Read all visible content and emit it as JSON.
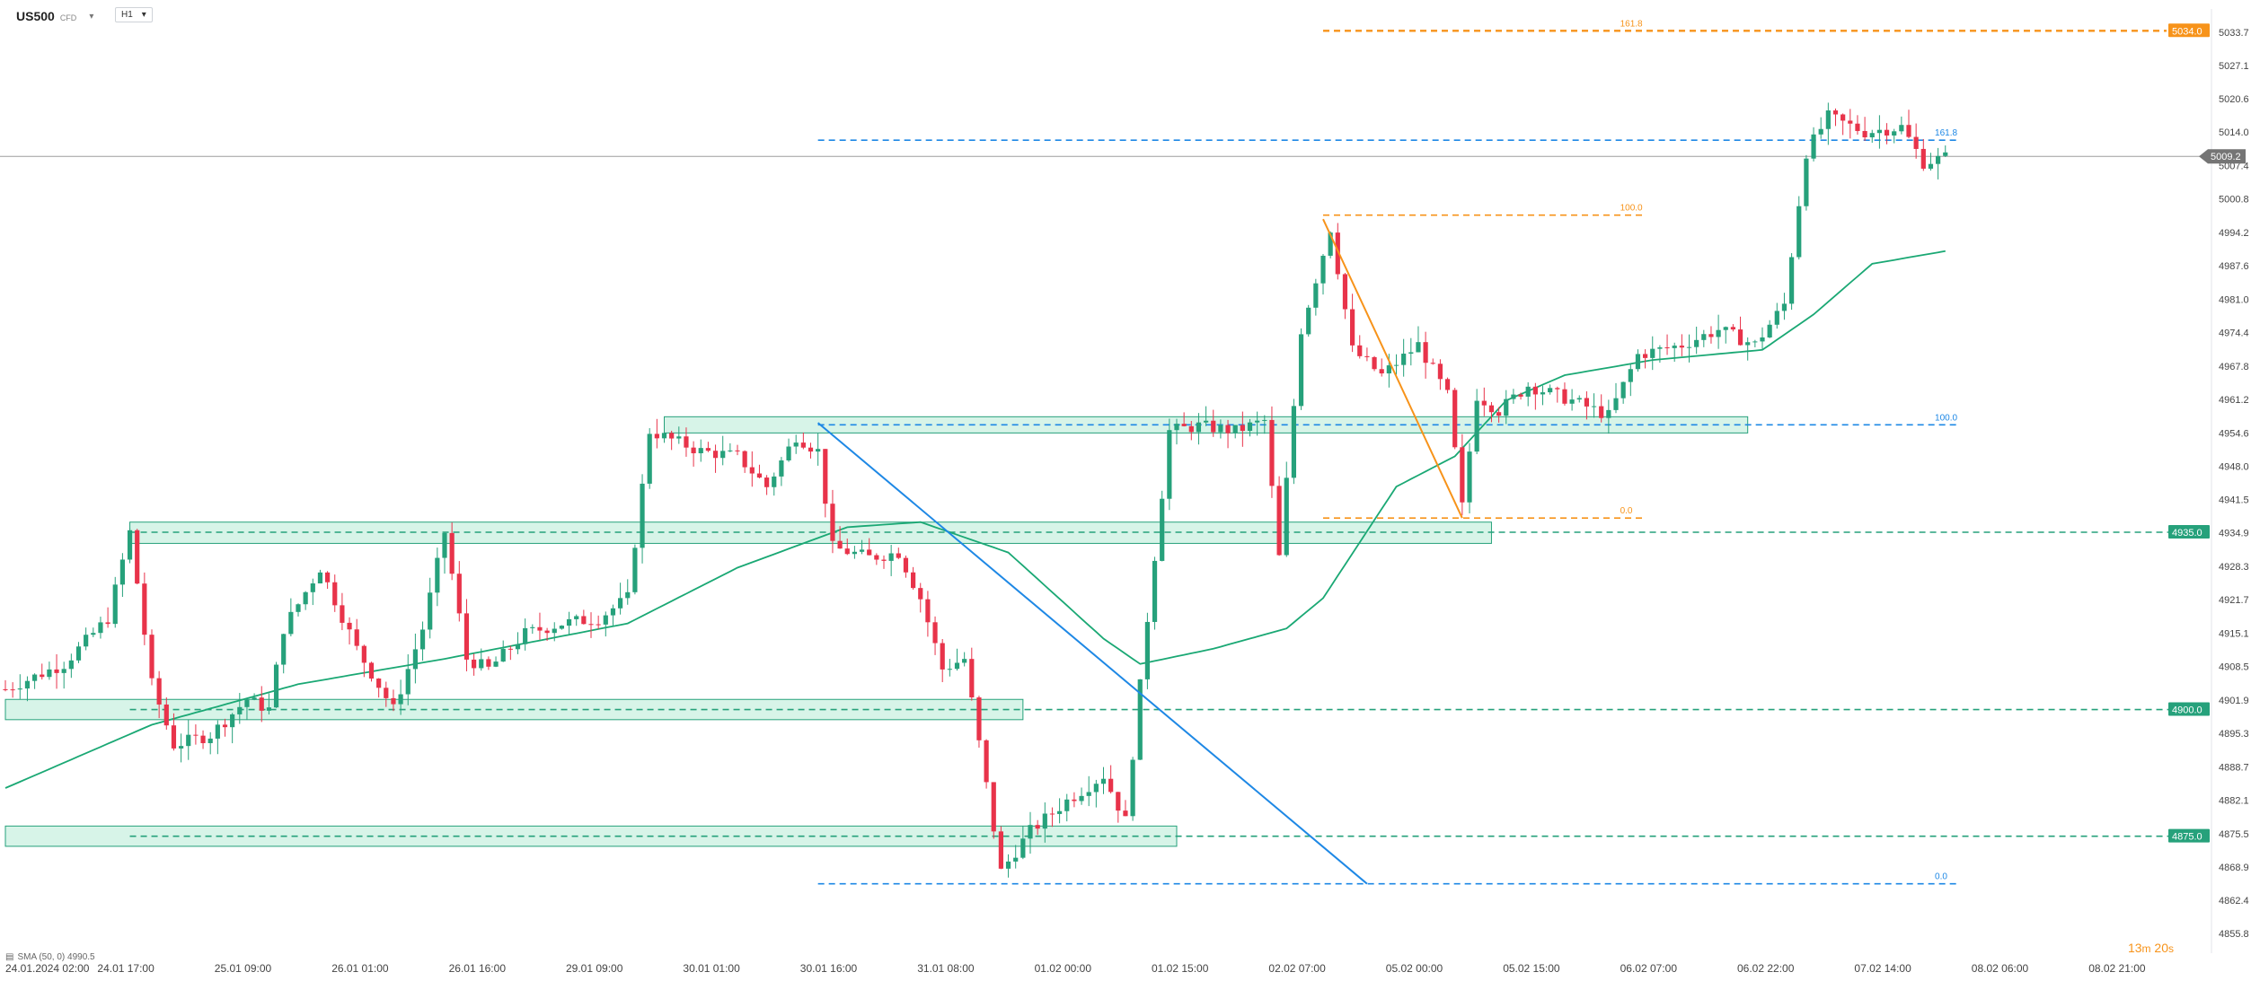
{
  "header": {
    "symbol": "US500",
    "symbol_sub": "CFD",
    "timeframe": "H1"
  },
  "indicator_label": "SMA (50, 0) 4990.5",
  "countdown": {
    "minutes": "13",
    "m_unit": "m",
    "seconds": "20",
    "s_unit": "s"
  },
  "colors": {
    "bull": "#26a17b",
    "bear": "#e8334a",
    "sma": "#1aa874",
    "zone_fill": "#c9f0e0",
    "zone_line": "#26a17b",
    "fib_orange": "#f7931a",
    "fib_blue": "#1e88e5",
    "current": "#757575"
  },
  "chart_data": {
    "type": "candlestick",
    "price_axis": {
      "ticks": [
        "5033.7",
        "5027.1",
        "5020.6",
        "5014.0",
        "5007.4",
        "5000.8",
        "4994.2",
        "4987.6",
        "4981.0",
        "4974.4",
        "4967.8",
        "4961.2",
        "4954.6",
        "4948.0",
        "4941.5",
        "4934.9",
        "4928.3",
        "4921.7",
        "4915.1",
        "4908.5",
        "4901.9",
        "4895.3",
        "4888.7",
        "4882.1",
        "4875.5",
        "4868.9",
        "4862.4",
        "4855.8"
      ],
      "range": [
        4855.8,
        5038.3
      ]
    },
    "time_axis": {
      "ticks": [
        "24.01.2024 02:00",
        "24.01 17:00",
        "25.01 09:00",
        "26.01 01:00",
        "26.01 16:00",
        "29.01 09:00",
        "30.01 01:00",
        "30.01 16:00",
        "31.01 08:00",
        "01.02 00:00",
        "01.02 15:00",
        "02.02 07:00",
        "05.02 00:00",
        "05.02 15:00",
        "06.02 07:00",
        "06.02 22:00",
        "07.02 14:00",
        "08.02 06:00",
        "08.02 21:00"
      ],
      "bars_per_tick": 16,
      "bar_count": 284
    },
    "current_price": "5009.2",
    "levels": [
      {
        "price": 5034.0,
        "label": "5034.0",
        "kind": "fib-orange"
      },
      {
        "price": 4935.0,
        "label": "4935.0",
        "kind": "zone-green"
      },
      {
        "price": 4900.0,
        "label": "4900.0",
        "kind": "zone-green"
      },
      {
        "price": 4875.0,
        "label": "4875.0",
        "kind": "zone-green"
      }
    ],
    "zones": [
      {
        "from": 4954.6,
        "to": 4957.8,
        "start_bar": 90,
        "end_bar": 238
      },
      {
        "from": 4932.8,
        "to": 4937.0,
        "start_bar": 17,
        "end_bar": 203
      },
      {
        "from": 4898.0,
        "to": 4902.0,
        "start_bar": 0,
        "end_bar": 139
      },
      {
        "from": 4873.0,
        "to": 4877.0,
        "start_bar": 0,
        "end_bar": 160
      }
    ],
    "fib_orange": {
      "labels": [
        "161.8",
        "100.0",
        "0.0"
      ],
      "prices": [
        5034.0,
        4997.6,
        4937.8
      ],
      "start_bar": 180,
      "end_bar": 224
    },
    "fib_blue": {
      "labels": [
        "161.8",
        "100.0",
        "0.0"
      ],
      "prices": [
        5012.4,
        4956.2,
        4865.6
      ],
      "start_bar": 111,
      "end_bar": 267
    },
    "trendlines": [
      {
        "color": "blue",
        "from": [
          111,
          4956.6
        ],
        "to": [
          186,
          4865.6
        ]
      },
      {
        "color": "orange",
        "from": [
          180,
          4996.8
        ],
        "to": [
          199,
          4937.8
        ]
      }
    ],
    "path_keypoints": [
      [
        0,
        4904
      ],
      [
        8,
        4909
      ],
      [
        14,
        4918
      ],
      [
        17,
        4935
      ],
      [
        20,
        4905
      ],
      [
        23,
        4893
      ],
      [
        28,
        4895
      ],
      [
        33,
        4902
      ],
      [
        36,
        4900
      ],
      [
        38,
        4916
      ],
      [
        43,
        4928
      ],
      [
        48,
        4912
      ],
      [
        53,
        4900
      ],
      [
        57,
        4916
      ],
      [
        60,
        4935
      ],
      [
        63,
        4910
      ],
      [
        66,
        4908
      ],
      [
        71,
        4915
      ],
      [
        76,
        4917
      ],
      [
        81,
        4918
      ],
      [
        85,
        4922
      ],
      [
        88,
        4955
      ],
      [
        95,
        4951
      ],
      [
        100,
        4950
      ],
      [
        104,
        4944
      ],
      [
        108,
        4954
      ],
      [
        111,
        4951
      ],
      [
        113,
        4932
      ],
      [
        118,
        4930
      ],
      [
        122,
        4931
      ],
      [
        125,
        4922
      ],
      [
        128,
        4908
      ],
      [
        131,
        4910
      ],
      [
        134,
        4885
      ],
      [
        136,
        4868
      ],
      [
        140,
        4876
      ],
      [
        145,
        4882
      ],
      [
        150,
        4887
      ],
      [
        153,
        4878
      ],
      [
        156,
        4918
      ],
      [
        159,
        4955
      ],
      [
        163,
        4956
      ],
      [
        168,
        4955
      ],
      [
        172,
        4957
      ],
      [
        174,
        4930
      ],
      [
        177,
        4975
      ],
      [
        181,
        4995
      ],
      [
        184,
        4971
      ],
      [
        188,
        4966
      ],
      [
        193,
        4972
      ],
      [
        197,
        4962
      ],
      [
        199,
        4940
      ],
      [
        201,
        4962
      ],
      [
        204,
        4959
      ],
      [
        208,
        4964
      ],
      [
        214,
        4961
      ],
      [
        219,
        4958
      ],
      [
        223,
        4970
      ],
      [
        229,
        4972
      ],
      [
        234,
        4975
      ],
      [
        239,
        4972
      ],
      [
        243,
        4980
      ],
      [
        246,
        5010
      ],
      [
        249,
        5017
      ],
      [
        254,
        5014
      ],
      [
        259,
        5015
      ],
      [
        262,
        5008
      ],
      [
        265,
        5009
      ]
    ],
    "sma_keypoints": [
      [
        0,
        4884.5
      ],
      [
        20,
        4897
      ],
      [
        40,
        4905
      ],
      [
        60,
        4910
      ],
      [
        85,
        4917
      ],
      [
        100,
        4928
      ],
      [
        115,
        4936
      ],
      [
        125,
        4937
      ],
      [
        137,
        4931
      ],
      [
        150,
        4914
      ],
      [
        155,
        4909
      ],
      [
        165,
        4912
      ],
      [
        175,
        4916
      ],
      [
        180,
        4922
      ],
      [
        190,
        4944
      ],
      [
        198,
        4950
      ],
      [
        205,
        4961
      ],
      [
        213,
        4966
      ],
      [
        225,
        4969
      ],
      [
        240,
        4971
      ],
      [
        247,
        4978
      ],
      [
        255,
        4988
      ],
      [
        265,
        4990.5
      ]
    ],
    "series": [
      {
        "name": "US500",
        "kind": "candles"
      },
      {
        "name": "SMA (50, 0)",
        "kind": "line",
        "last": 4990.5
      }
    ]
  }
}
